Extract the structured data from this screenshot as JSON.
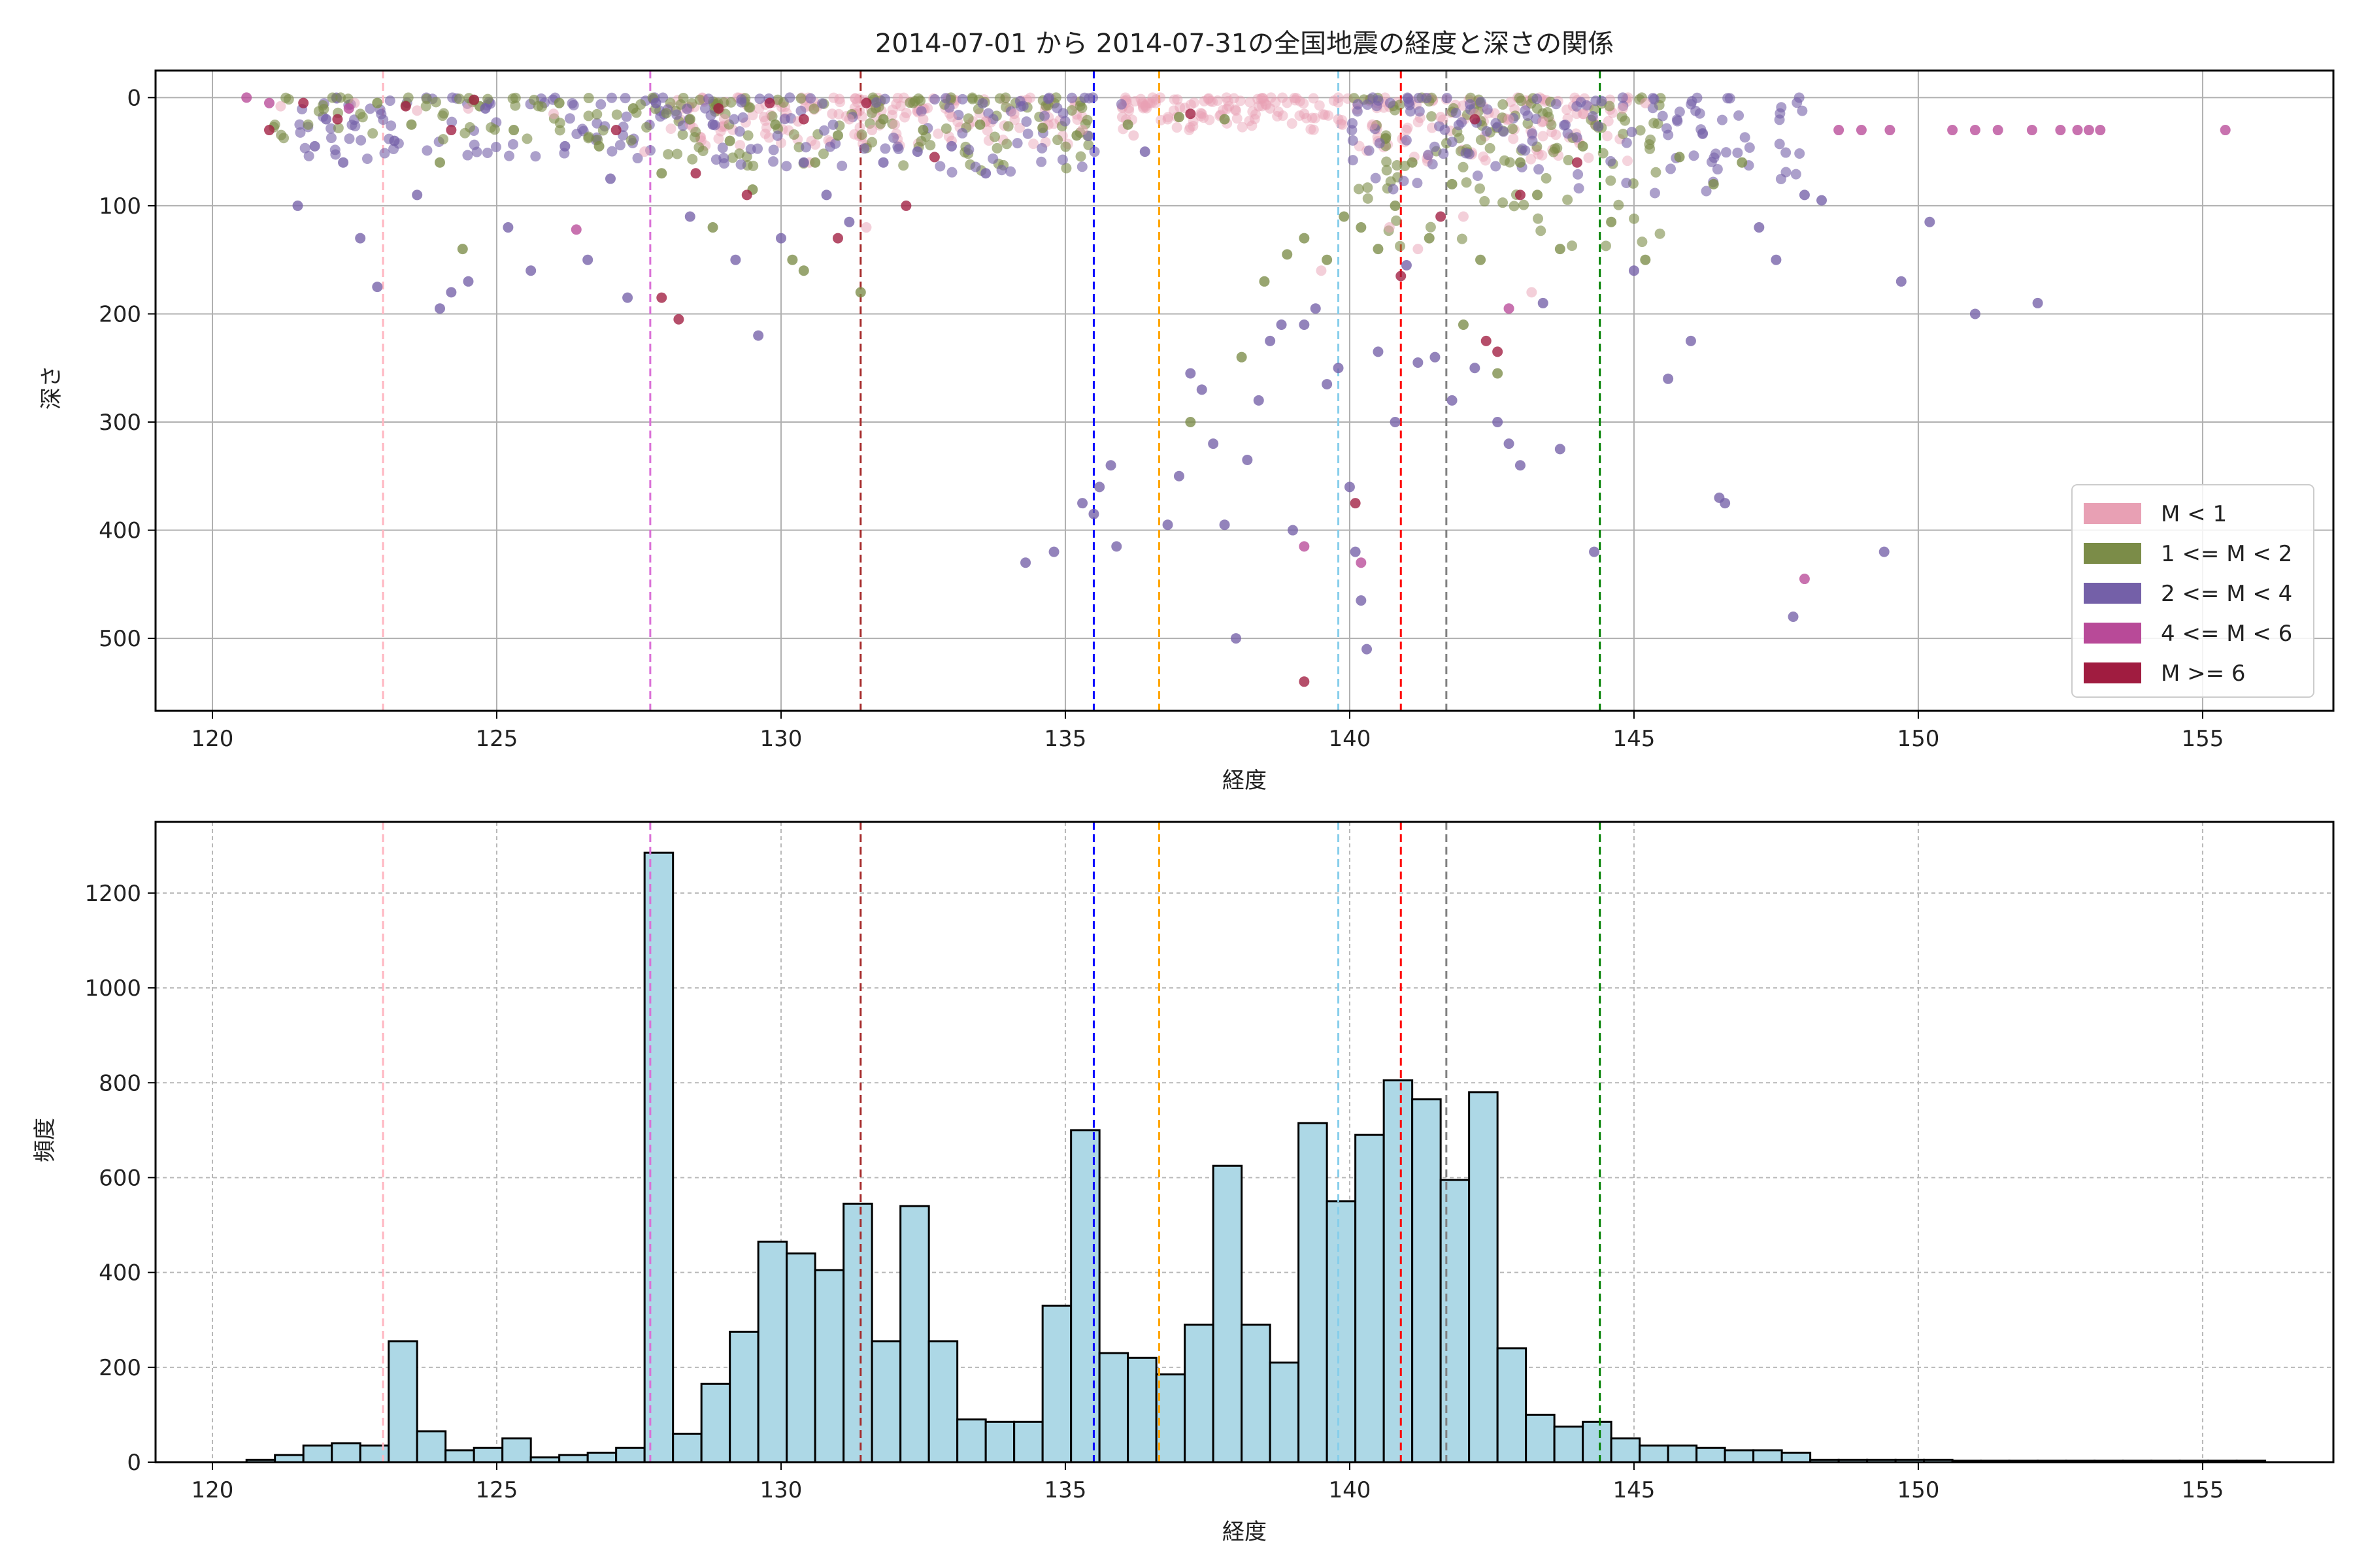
{
  "chart_data": [
    {
      "type": "scatter",
      "title": "2014-07-01 から 2014-07-31の全国地震の経度と深さの関係",
      "xlabel": "経度",
      "ylabel": "深さ",
      "xlim": [
        119,
        157.3
      ],
      "ylim": [
        567,
        -25
      ],
      "y_inverted": true,
      "x_ticks": [
        120,
        125,
        130,
        135,
        140,
        145,
        150,
        155
      ],
      "y_ticks": [
        0,
        100,
        200,
        300,
        400,
        500
      ],
      "grid": true,
      "legend_position": "lower-right",
      "legend": [
        {
          "label": "M < 1",
          "color": "#e8a0b4"
        },
        {
          "label": "1 <= M < 2",
          "color": "#7b8c48"
        },
        {
          "label": "2 <= M < 4",
          "color": "#7460a8"
        },
        {
          "label": "4 <= M < 6",
          "color": "#b84a98"
        },
        {
          "label": "M >= 6",
          "color": "#a01c40"
        }
      ],
      "reference_lines": [
        {
          "x": 123.0,
          "color": "#ffb6c1"
        },
        {
          "x": 127.7,
          "color": "#da70d6"
        },
        {
          "x": 131.4,
          "color": "#a52a2a"
        },
        {
          "x": 135.5,
          "color": "#0000ff"
        },
        {
          "x": 136.65,
          "color": "#ffa500"
        },
        {
          "x": 139.8,
          "color": "#87ceeb"
        },
        {
          "x": 140.9,
          "color": "#ff0000"
        },
        {
          "x": 141.7,
          "color": "#808080"
        },
        {
          "x": 144.4,
          "color": "#008000"
        }
      ],
      "series": [
        {
          "legend_index": 0,
          "points": [
            [
              121.2,
              8
            ],
            [
              122.5,
              5
            ],
            [
              123.6,
              12
            ],
            [
              124.5,
              10
            ],
            [
              126.0,
              15
            ],
            [
              127.6,
              50
            ],
            [
              128.4,
              25
            ],
            [
              129.0,
              20
            ],
            [
              129.7,
              18
            ],
            [
              130.3,
              22
            ],
            [
              130.9,
              15
            ],
            [
              131.2,
              20
            ],
            [
              131.6,
              30
            ],
            [
              132.0,
              25
            ],
            [
              132.5,
              20
            ],
            [
              133.0,
              18
            ],
            [
              133.6,
              22
            ],
            [
              134.1,
              15
            ],
            [
              134.7,
              25
            ],
            [
              135.3,
              30
            ],
            [
              136.0,
              18
            ],
            [
              136.8,
              20
            ],
            [
              137.4,
              15
            ],
            [
              138.0,
              12
            ],
            [
              138.6,
              10
            ],
            [
              139.2,
              15
            ],
            [
              139.8,
              20
            ],
            [
              140.4,
              25
            ],
            [
              141.0,
              30
            ],
            [
              141.6,
              18
            ],
            [
              142.2,
              15
            ],
            [
              142.8,
              20
            ],
            [
              143.4,
              22
            ],
            [
              144.1,
              15
            ],
            [
              144.8,
              10
            ],
            [
              145.2,
              5
            ],
            [
              139.5,
              160
            ],
            [
              141.2,
              140
            ],
            [
              142.0,
              110
            ],
            [
              143.2,
              180
            ],
            [
              130.5,
              60
            ],
            [
              131.5,
              120
            ],
            [
              133.0,
              40
            ],
            [
              136.2,
              35
            ],
            [
              138.4,
              8
            ],
            [
              140.7,
              120
            ]
          ]
        },
        {
          "legend_index": 1,
          "points": [
            [
              122.9,
              5
            ],
            [
              123.5,
              25
            ],
            [
              124.0,
              60
            ],
            [
              124.4,
              140
            ],
            [
              124.7,
              8
            ],
            [
              125.3,
              30
            ],
            [
              126.1,
              5
            ],
            [
              126.8,
              45
            ],
            [
              127.4,
              10
            ],
            [
              127.9,
              70
            ],
            [
              128.4,
              20
            ],
            [
              128.8,
              120
            ],
            [
              129.1,
              40
            ],
            [
              129.5,
              85
            ],
            [
              129.9,
              25
            ],
            [
              130.2,
              150
            ],
            [
              130.4,
              160
            ],
            [
              130.6,
              60
            ],
            [
              131.0,
              35
            ],
            [
              131.4,
              180
            ],
            [
              131.8,
              20
            ],
            [
              132.5,
              30
            ],
            [
              133.5,
              25
            ],
            [
              134.6,
              28
            ],
            [
              135.2,
              35
            ],
            [
              136.1,
              25
            ],
            [
              137.0,
              18
            ],
            [
              137.2,
              300
            ],
            [
              137.8,
              20
            ],
            [
              138.1,
              240
            ],
            [
              138.5,
              170
            ],
            [
              138.9,
              145
            ],
            [
              139.2,
              130
            ],
            [
              139.6,
              150
            ],
            [
              139.9,
              110
            ],
            [
              140.2,
              120
            ],
            [
              140.5,
              140
            ],
            [
              140.8,
              100
            ],
            [
              141.1,
              60
            ],
            [
              141.4,
              130
            ],
            [
              141.8,
              80
            ],
            [
              142.0,
              210
            ],
            [
              142.3,
              150
            ],
            [
              142.6,
              255
            ],
            [
              143.0,
              60
            ],
            [
              143.3,
              90
            ],
            [
              143.7,
              140
            ],
            [
              144.1,
              45
            ],
            [
              144.6,
              115
            ],
            [
              145.2,
              150
            ],
            [
              145.8,
              55
            ],
            [
              146.4,
              80
            ],
            [
              146.9,
              60
            ]
          ]
        },
        {
          "legend_index": 2,
          "points": [
            [
              121.5,
              100
            ],
            [
              121.8,
              45
            ],
            [
              122.0,
              20
            ],
            [
              122.3,
              60
            ],
            [
              122.6,
              130
            ],
            [
              122.9,
              175
            ],
            [
              123.2,
              40
            ],
            [
              123.6,
              90
            ],
            [
              124.0,
              195
            ],
            [
              124.2,
              180
            ],
            [
              124.5,
              170
            ],
            [
              124.8,
              10
            ],
            [
              125.2,
              120
            ],
            [
              125.6,
              160
            ],
            [
              126.2,
              45
            ],
            [
              126.6,
              150
            ],
            [
              127.0,
              75
            ],
            [
              127.3,
              185
            ],
            [
              127.8,
              5
            ],
            [
              128.4,
              110
            ],
            [
              128.8,
              25
            ],
            [
              129.2,
              150
            ],
            [
              129.6,
              220
            ],
            [
              130.0,
              130
            ],
            [
              130.4,
              60
            ],
            [
              130.8,
              90
            ],
            [
              131.2,
              115
            ],
            [
              131.8,
              60
            ],
            [
              132.4,
              50
            ],
            [
              133.0,
              45
            ],
            [
              133.6,
              70
            ],
            [
              134.3,
              430
            ],
            [
              134.8,
              420
            ],
            [
              135.3,
              375
            ],
            [
              135.5,
              385
            ],
            [
              135.6,
              360
            ],
            [
              135.8,
              340
            ],
            [
              135.9,
              415
            ],
            [
              136.4,
              50
            ],
            [
              136.8,
              395
            ],
            [
              137.0,
              350
            ],
            [
              137.2,
              255
            ],
            [
              137.4,
              270
            ],
            [
              137.6,
              320
            ],
            [
              137.8,
              395
            ],
            [
              138.0,
              500
            ],
            [
              138.2,
              335
            ],
            [
              138.4,
              280
            ],
            [
              138.6,
              225
            ],
            [
              138.8,
              210
            ],
            [
              139.0,
              400
            ],
            [
              139.2,
              210
            ],
            [
              139.4,
              195
            ],
            [
              139.6,
              265
            ],
            [
              139.8,
              250
            ],
            [
              140.0,
              360
            ],
            [
              140.1,
              420
            ],
            [
              140.2,
              465
            ],
            [
              140.3,
              510
            ],
            [
              140.5,
              235
            ],
            [
              140.8,
              300
            ],
            [
              141.0,
              155
            ],
            [
              141.2,
              245
            ],
            [
              141.5,
              240
            ],
            [
              141.8,
              280
            ],
            [
              142.2,
              250
            ],
            [
              142.6,
              300
            ],
            [
              142.8,
              320
            ],
            [
              143.0,
              340
            ],
            [
              143.4,
              190
            ],
            [
              143.7,
              325
            ],
            [
              144.3,
              420
            ],
            [
              145.0,
              160
            ],
            [
              145.6,
              260
            ],
            [
              146.0,
              225
            ],
            [
              146.5,
              370
            ],
            [
              146.6,
              375
            ],
            [
              147.2,
              120
            ],
            [
              147.5,
              150
            ],
            [
              147.8,
              480
            ],
            [
              148.0,
              90
            ],
            [
              148.3,
              95
            ],
            [
              149.4,
              420
            ],
            [
              149.7,
              170
            ],
            [
              150.2,
              115
            ],
            [
              151.0,
              200
            ],
            [
              152.1,
              190
            ]
          ]
        },
        {
          "legend_index": 3,
          "points": [
            [
              120.6,
              0
            ],
            [
              121.0,
              5
            ],
            [
              122.4,
              10
            ],
            [
              126.4,
              122
            ],
            [
              139.2,
              415
            ],
            [
              140.2,
              430
            ],
            [
              142.8,
              195
            ],
            [
              148.0,
              445
            ],
            [
              148.6,
              30
            ],
            [
              149.0,
              30
            ],
            [
              149.5,
              30
            ],
            [
              150.6,
              30
            ],
            [
              151.0,
              30
            ],
            [
              151.4,
              30
            ],
            [
              152.0,
              30
            ],
            [
              152.5,
              30
            ],
            [
              152.8,
              30
            ],
            [
              153.0,
              30
            ],
            [
              153.2,
              30
            ],
            [
              155.4,
              30
            ]
          ]
        },
        {
          "legend_index": 4,
          "points": [
            [
              121.0,
              30
            ],
            [
              121.6,
              5
            ],
            [
              122.2,
              20
            ],
            [
              123.4,
              8
            ],
            [
              124.2,
              30
            ],
            [
              124.6,
              2
            ],
            [
              127.1,
              30
            ],
            [
              127.9,
              185
            ],
            [
              128.2,
              205
            ],
            [
              128.5,
              70
            ],
            [
              128.9,
              10
            ],
            [
              129.4,
              90
            ],
            [
              129.8,
              5
            ],
            [
              130.4,
              20
            ],
            [
              131.0,
              130
            ],
            [
              131.5,
              5
            ],
            [
              132.2,
              100
            ],
            [
              132.7,
              55
            ],
            [
              137.2,
              15
            ],
            [
              139.2,
              540
            ],
            [
              140.1,
              375
            ],
            [
              140.9,
              165
            ],
            [
              141.6,
              110
            ],
            [
              142.2,
              20
            ],
            [
              142.4,
              225
            ],
            [
              142.6,
              235
            ],
            [
              143.0,
              90
            ],
            [
              144.0,
              60
            ]
          ]
        }
      ]
    },
    {
      "type": "bar",
      "histogram": true,
      "xlabel": "経度",
      "ylabel": "頻度",
      "xlim": [
        119,
        157.3
      ],
      "ylim": [
        0,
        1350
      ],
      "x_ticks": [
        120,
        125,
        130,
        135,
        140,
        145,
        150,
        155
      ],
      "y_ticks": [
        0,
        200,
        400,
        600,
        800,
        1000,
        1200
      ],
      "grid": true,
      "bar_color": "#add8e6",
      "edge_color": "#000000",
      "bin_start": 120.6,
      "bin_width": 0.5,
      "values": [
        5,
        15,
        35,
        40,
        35,
        255,
        65,
        25,
        30,
        50,
        10,
        15,
        20,
        30,
        1285,
        60,
        165,
        275,
        465,
        440,
        405,
        545,
        255,
        540,
        255,
        90,
        85,
        85,
        330,
        700,
        230,
        220,
        185,
        290,
        625,
        290,
        210,
        715,
        550,
        690,
        805,
        765,
        595,
        780,
        240,
        100,
        75,
        85,
        50,
        35,
        35,
        30,
        25,
        25,
        20,
        5,
        5,
        5,
        5,
        5,
        3,
        3,
        3,
        3,
        3,
        3,
        3,
        3,
        3,
        3,
        3
      ]
    }
  ],
  "reference_lines": [
    {
      "x": 123.0,
      "color": "#ffb6c1"
    },
    {
      "x": 127.7,
      "color": "#da70d6"
    },
    {
      "x": 131.4,
      "color": "#a52a2a"
    },
    {
      "x": 135.5,
      "color": "#0000ff"
    },
    {
      "x": 136.65,
      "color": "#ffa500"
    },
    {
      "x": 139.8,
      "color": "#87ceeb"
    },
    {
      "x": 140.9,
      "color": "#ff0000"
    },
    {
      "x": 141.7,
      "color": "#808080"
    },
    {
      "x": 144.4,
      "color": "#008000"
    }
  ]
}
